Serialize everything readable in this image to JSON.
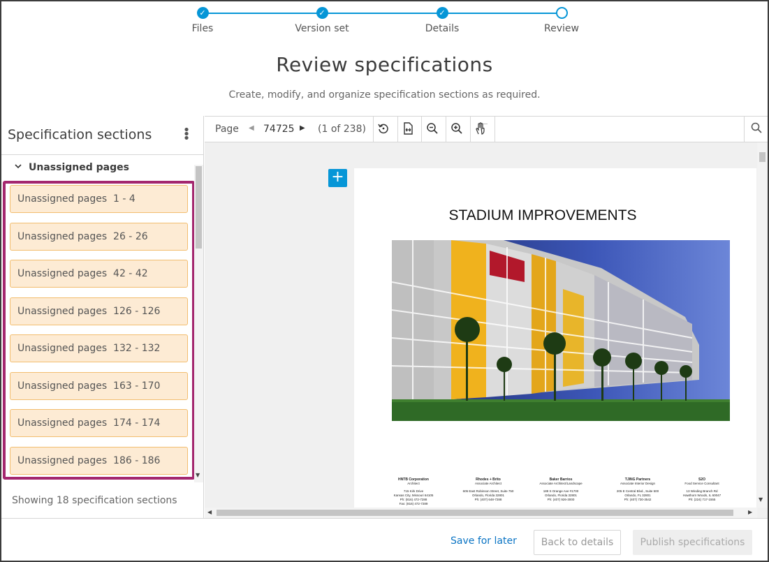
{
  "stepper": {
    "steps": [
      {
        "label": "Files",
        "state": "complete"
      },
      {
        "label": "Version set",
        "state": "complete"
      },
      {
        "label": "Details",
        "state": "complete"
      },
      {
        "label": "Review",
        "state": "current"
      }
    ],
    "accent_color": "#0696d7"
  },
  "header": {
    "title": "Review specifications",
    "subtitle": "Create, modify, and organize specification sections as required."
  },
  "sidebar": {
    "title": "Specification sections",
    "menu_icon": "kebab-menu-icon",
    "group": {
      "label": "Unassigned pages",
      "expanded": true
    },
    "items": [
      {
        "label": "Unassigned pages  1 - 4"
      },
      {
        "label": "Unassigned pages  26 - 26"
      },
      {
        "label": "Unassigned pages  42 - 42"
      },
      {
        "label": "Unassigned pages  126 - 126"
      },
      {
        "label": "Unassigned pages  132 - 132"
      },
      {
        "label": "Unassigned pages  163 - 170"
      },
      {
        "label": "Unassigned pages  174 - 174"
      },
      {
        "label": "Unassigned pages  186 - 186"
      }
    ],
    "highlight_color": "#a4276f",
    "item_bg_color": "#fdebd4",
    "status": "Showing 18 specification sections"
  },
  "viewer": {
    "toolbar": {
      "page_label": "Page",
      "page_value": "74725",
      "page_count": "(1 of 238)",
      "tools": [
        "rotate-icon",
        "fit-width-icon",
        "zoom-out-icon",
        "zoom-in-icon",
        "pan-hand-icon"
      ],
      "search_icon": "search-icon"
    },
    "document": {
      "title": "STADIUM IMPROVEMENTS",
      "firms": [
        {
          "name": "HNTB Corporation",
          "role": "Architect",
          "address": [
            "715 Kirk Drive",
            "Kansas City, Missouri 64105",
            "Ph: (816) 472-7288",
            "Fax: (816) 472-7289"
          ]
        },
        {
          "name": "Rhodes + Brito",
          "role": "Associate Architect",
          "address": [
            "605 East Robinson Street, Suite 750",
            "Orlando, Florida 32801",
            "Ph: (407) 648-7288"
          ]
        },
        {
          "name": "Baker Barrios",
          "role": "Associate Architect/Landscape",
          "address": [
            "189 S Orange Ave #1700",
            "Orlando, Florida 32801",
            "Ph: (407) 926-3000"
          ]
        },
        {
          "name": "TJING Partners",
          "role": "Associate Interior Design",
          "address": [
            "205 E Central Blvd., Suite 500",
            "Orlando, FL 32801",
            "Ph: (407) 730-3542"
          ]
        },
        {
          "name": "S2O",
          "role": "Food Service Consultant",
          "address": [
            "13 Winding Branch Rd",
            "Hawthorn Woods, IL 60047",
            "Ph: (224) 717-1555"
          ]
        }
      ]
    }
  },
  "footer": {
    "save_label": "Save for later",
    "back_label": "Back to details",
    "publish_label": "Publish specifications"
  }
}
